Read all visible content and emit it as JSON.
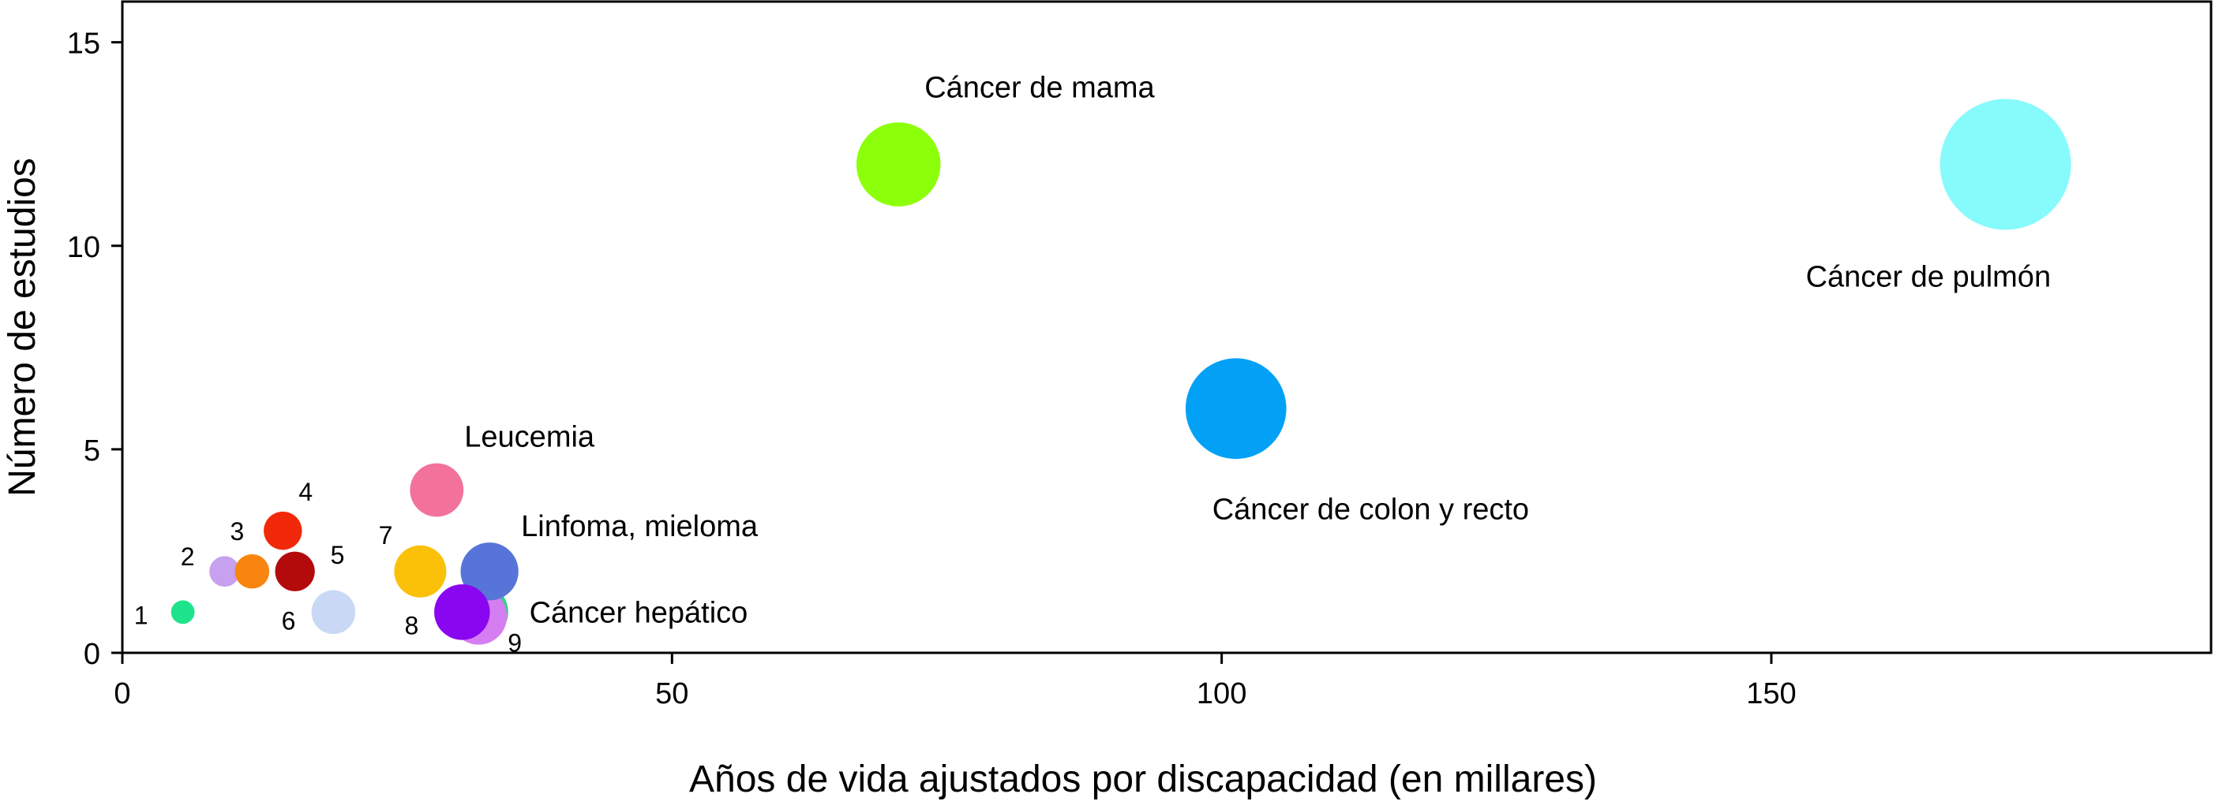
{
  "chart_data": {
    "type": "scatter",
    "subtype": "bubble",
    "xlabel": "Años de vida ajustados por discapacidad (en millares)",
    "ylabel": "Número de estudios",
    "xlim": [
      0,
      190
    ],
    "ylim": [
      0,
      16
    ],
    "xticks": [
      0,
      50,
      100,
      150
    ],
    "yticks": [
      0,
      5,
      10,
      15
    ],
    "grid": false,
    "points": [
      {
        "label": "1",
        "x": 5.5,
        "y": 1,
        "size": 5.5,
        "color": "#1de48a"
      },
      {
        "label": "2",
        "x": 9.3,
        "y": 2,
        "size": 9.3,
        "color": "#c7a0ef"
      },
      {
        "label": "3",
        "x": 11.8,
        "y": 2,
        "size": 11.8,
        "color": "#f8850f"
      },
      {
        "label": "4",
        "x": 14.6,
        "y": 3,
        "size": 14.6,
        "color": "#f2280a"
      },
      {
        "label": "5",
        "x": 15.7,
        "y": 2,
        "size": 15.7,
        "color": "#b30b0b"
      },
      {
        "label": "6",
        "x": 19.2,
        "y": 1,
        "size": 19.2,
        "color": "#c8d8f5"
      },
      {
        "label": "7",
        "x": 27.1,
        "y": 2,
        "size": 27.1,
        "color": "#fbc109"
      },
      {
        "label": "Leucemia",
        "x": 28.6,
        "y": 4,
        "size": 28.6,
        "color": "#f2729b"
      },
      {
        "label": "Cáncer hepático",
        "x": 32.5,
        "y": 1,
        "size": 32.5,
        "color": "#23d681"
      },
      {
        "label": "9",
        "x": 32.4,
        "y": 0.9,
        "size": 32.4,
        "color": "#d57ef2"
      },
      {
        "label": "Linfoma, mieloma",
        "x": 33.4,
        "y": 2,
        "size": 33.4,
        "color": "#5774d8"
      },
      {
        "label": "8",
        "x": 30.9,
        "y": 1,
        "size": 30.9,
        "color": "#8b06f0"
      },
      {
        "label": "Cáncer de mama",
        "x": 70.6,
        "y": 12,
        "size": 70.6,
        "color": "#8cff0a"
      },
      {
        "label": "Cáncer de colon y recto",
        "x": 101.3,
        "y": 6,
        "size": 101.3,
        "color": "#03a1f6"
      },
      {
        "label": "Cáncer de pulmón",
        "x": 171.3,
        "y": 12,
        "size": 171.3,
        "color": "#87fafc"
      }
    ]
  }
}
